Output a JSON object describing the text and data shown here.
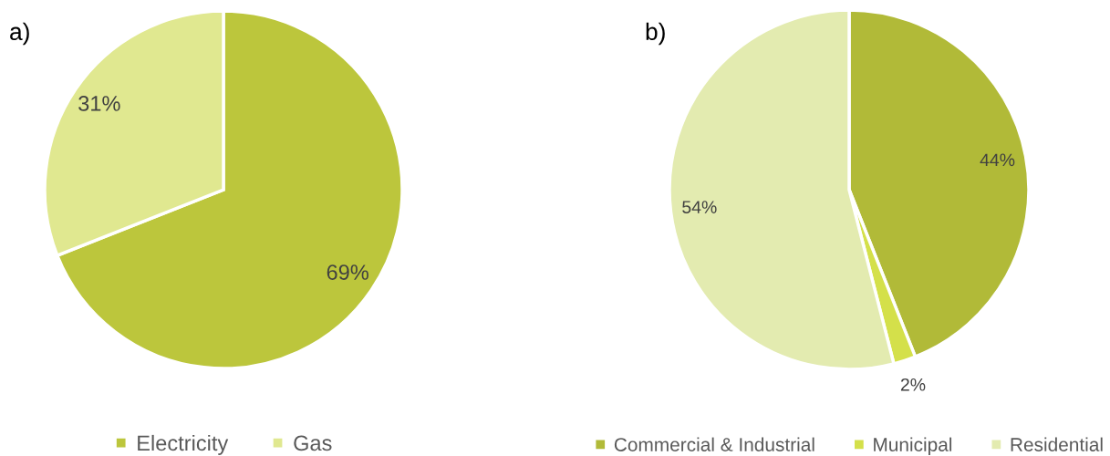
{
  "chart_data": [
    {
      "type": "pie",
      "title": "a)",
      "categories": [
        "Electricity",
        "Gas"
      ],
      "values": [
        69,
        31
      ],
      "colors": [
        "#bcc63c",
        "#e0e890"
      ],
      "value_labels": [
        "69%",
        "31%"
      ],
      "legend": "bottom"
    },
    {
      "type": "pie",
      "title": "b)",
      "categories": [
        "Commercial & Industrial",
        "Municipal",
        "Residential"
      ],
      "values": [
        44,
        2,
        54
      ],
      "colors": [
        "#b1ba38",
        "#d4e04a",
        "#e3ebb0"
      ],
      "value_labels": [
        "44%",
        "2%",
        "54%"
      ],
      "legend": "bottom"
    }
  ]
}
